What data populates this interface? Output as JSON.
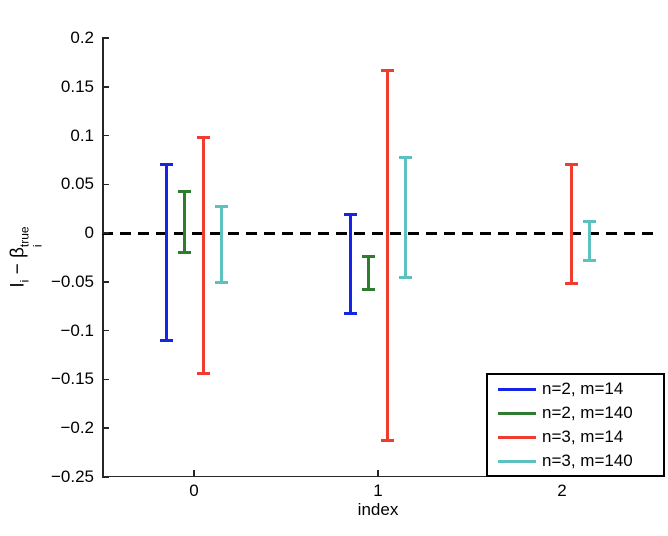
{
  "axes": {
    "xlabel": "index",
    "ylabel_parts": {
      "term1_base": "I",
      "term1_sub": "i",
      "operator": " − ",
      "term2_base": "β",
      "term2_sub": "i",
      "term2_sup": "true"
    },
    "y_ticks": [
      {
        "value": 0.2,
        "label": "0.2"
      },
      {
        "value": 0.15,
        "label": "0.15"
      },
      {
        "value": 0.1,
        "label": "0.1"
      },
      {
        "value": 0.05,
        "label": "0.05"
      },
      {
        "value": 0,
        "label": "0"
      },
      {
        "value": -0.05,
        "label": "−0.05"
      },
      {
        "value": -0.1,
        "label": "−0.1"
      },
      {
        "value": -0.15,
        "label": "−0.15"
      },
      {
        "value": -0.2,
        "label": "−0.2"
      },
      {
        "value": -0.25,
        "label": "−0.25"
      }
    ],
    "x_ticks": [
      {
        "value": 0,
        "label": "0"
      },
      {
        "value": 1,
        "label": "1"
      },
      {
        "value": 2,
        "label": "2"
      }
    ],
    "colors": {
      "axis": "#262626",
      "zero_line": "#000000",
      "background": "#ffffff"
    }
  },
  "legend": {
    "entries": [
      "n=2, m=14",
      "n=2, m=140",
      "n=3, m=14",
      "n=3, m=140"
    ],
    "position": "lower right"
  },
  "chart_data": {
    "type": "errorbar",
    "title": "",
    "xlabel": "index",
    "ylabel": "I_i − β_i^{true}",
    "xlim": [
      -0.5,
      2.5
    ],
    "ylim": [
      -0.25,
      0.2
    ],
    "grid": false,
    "zero_line_y": 0,
    "x_tick_values": [
      0,
      1,
      2
    ],
    "y_tick_values": [
      0.2,
      0.15,
      0.1,
      0.05,
      0,
      -0.05,
      -0.1,
      -0.15,
      -0.2,
      -0.25
    ],
    "legend_position": "lower right",
    "group_offsets": [
      -0.15,
      -0.05,
      0.05,
      0.15
    ],
    "series": [
      {
        "name": "n=2, m=14",
        "color": "#1525e6",
        "x_offset": -0.15,
        "intervals": [
          {
            "x": 0,
            "low": -0.11,
            "high": 0.07
          },
          {
            "x": 1,
            "low": -0.082,
            "high": 0.019
          }
        ]
      },
      {
        "name": "n=2, m=140",
        "color": "#2e7d2e",
        "x_offset": -0.05,
        "intervals": [
          {
            "x": 0,
            "low": -0.02,
            "high": 0.043
          },
          {
            "x": 1,
            "low": -0.058,
            "high": -0.024
          }
        ]
      },
      {
        "name": "n=3, m=14",
        "color": "#ee3c2e",
        "x_offset": 0.05,
        "intervals": [
          {
            "x": 0,
            "low": -0.144,
            "high": 0.098
          },
          {
            "x": 1,
            "low": -0.213,
            "high": 0.167
          },
          {
            "x": 2,
            "low": -0.052,
            "high": 0.07
          }
        ]
      },
      {
        "name": "n=3, m=140",
        "color": "#5ec1c1",
        "x_offset": 0.15,
        "intervals": [
          {
            "x": 0,
            "low": -0.051,
            "high": 0.027
          },
          {
            "x": 1,
            "low": -0.045,
            "high": 0.078
          },
          {
            "x": 2,
            "low": -0.028,
            "high": 0.012
          }
        ]
      }
    ]
  }
}
